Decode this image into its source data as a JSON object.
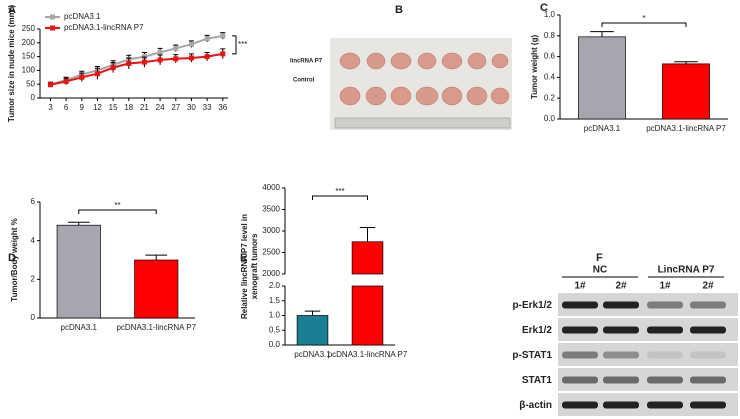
{
  "chart_data": [
    {
      "panel": "A",
      "type": "line",
      "ylabel": "Tumor size in nude mice (mm³)",
      "x": [
        3,
        6,
        9,
        12,
        15,
        18,
        21,
        24,
        27,
        30,
        33,
        36
      ],
      "xlim": [
        1,
        37
      ],
      "xticks": [
        3,
        6,
        9,
        12,
        15,
        18,
        21,
        24,
        27,
        30,
        33,
        36
      ],
      "ylim": [
        0,
        250
      ],
      "yticks": [
        0,
        50,
        100,
        150,
        200,
        250
      ],
      "annotation": "***",
      "legend": "upper left",
      "series": [
        {
          "name": "pcDNA3.1",
          "color": "#a6a6a6",
          "values": [
            50,
            65,
            85,
            100,
            120,
            140,
            150,
            165,
            180,
            195,
            215,
            225
          ],
          "errors": [
            8,
            10,
            12,
            14,
            15,
            15,
            15,
            15,
            12,
            12,
            12,
            12
          ]
        },
        {
          "name": "pcDNA3.1-lincRNA P7",
          "color": "#ee1111",
          "values": [
            48,
            60,
            75,
            88,
            110,
            125,
            130,
            138,
            142,
            145,
            150,
            160
          ],
          "errors": [
            8,
            12,
            15,
            20,
            18,
            20,
            18,
            18,
            15,
            15,
            15,
            18
          ]
        }
      ]
    },
    {
      "panel": "C",
      "type": "bar",
      "ylabel": "Tumor weight (g)",
      "categories": [
        "pcDNA3.1",
        "pcDNA3.1-lincRNA P7"
      ],
      "values": [
        0.79,
        0.53
      ],
      "errors": [
        0.05,
        0.02
      ],
      "colors": [
        "#a6a6ae",
        "#ff0000"
      ],
      "ylim": [
        0,
        1
      ],
      "yticks": [
        {
          "value": 0,
          "label": "0.0"
        },
        0.2,
        0.4,
        0.6,
        0.8,
        {
          "value": 1,
          "label": "1.0"
        }
      ],
      "annotation": "*"
    },
    {
      "panel": "D",
      "type": "bar",
      "ylabel": "Tumor/Body weight %",
      "categories": [
        "pcDNA3.1",
        "pcDNA3.1-lincRNA P7"
      ],
      "values": [
        4.8,
        3.0
      ],
      "errors": [
        0.15,
        0.25
      ],
      "colors": [
        "#a6a6ae",
        "#ff0000"
      ],
      "ylim": [
        0,
        6
      ],
      "yticks": [
        0,
        2,
        4,
        6
      ],
      "annotation": "**"
    },
    {
      "panel": "E",
      "type": "broken-bar",
      "ylabel": [
        "Relative lincRNA P7 level in",
        "xenograft tumors"
      ],
      "categories": [
        "pcDNA3.1",
        "pcDNA3.1-lincRNA P7"
      ],
      "values": [
        1.0,
        2750
      ],
      "errors": [
        0.15,
        330
      ],
      "colors": [
        "#1a7f93",
        "#ff0000"
      ],
      "ylim_lower": [
        0,
        2
      ],
      "yticks_lower": [
        {
          "value": 0,
          "label": "0.0"
        },
        0.5,
        {
          "value": 1,
          "label": "1.0"
        },
        1.5,
        {
          "value": 2,
          "label": "2.0"
        }
      ],
      "ylim_upper": [
        2000,
        4000
      ],
      "yticks_upper": [
        2000,
        2500,
        3000,
        3500,
        4000
      ],
      "annotation": "***"
    }
  ],
  "photo": {
    "panel": "B",
    "rows": [
      "lincRNA P7",
      "Control"
    ]
  },
  "blot": {
    "panel": "F",
    "groups": [
      "NC",
      "LincRNA P7"
    ],
    "lanes": [
      "1#",
      "2#",
      "1#",
      "2#"
    ],
    "rows": [
      "p-Erk1/2",
      "Erk1/2",
      "p-STAT1",
      "STAT1",
      "β-actin"
    ]
  }
}
